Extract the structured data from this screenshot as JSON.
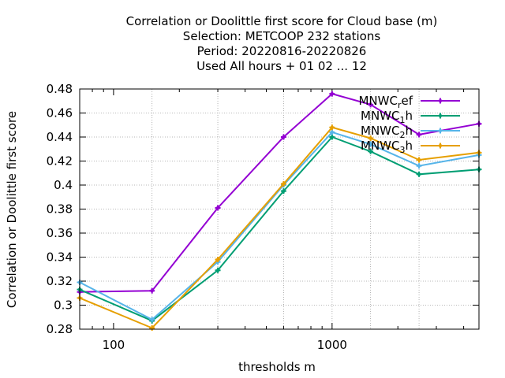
{
  "chart_data": {
    "type": "line",
    "title_lines": [
      "Correlation or Doolittle first score  for Cloud base (m)",
      "Selection: METCOOP    232 stations",
      "Period: 20220816-20220826",
      "Used  All hours + 01 02 ... 12"
    ],
    "xlabel": "thresholds m",
    "ylabel": "Correlation or Doolittle first score",
    "x_scale": "log",
    "xlim": [
      70,
      4700
    ],
    "ylim": [
      0.28,
      0.48
    ],
    "grid": true,
    "legend_position": "top-right",
    "x_tick_labels": [
      {
        "value": 100,
        "label": "100"
      },
      {
        "value": 1000,
        "label": "1000"
      }
    ],
    "y_tick_labels": [
      {
        "value": 0.28,
        "label": "0.28"
      },
      {
        "value": 0.3,
        "label": "0.3"
      },
      {
        "value": 0.32,
        "label": "0.32"
      },
      {
        "value": 0.34,
        "label": "0.34"
      },
      {
        "value": 0.36,
        "label": "0.36"
      },
      {
        "value": 0.38,
        "label": "0.38"
      },
      {
        "value": 0.4,
        "label": "0.4"
      },
      {
        "value": 0.42,
        "label": "0.42"
      },
      {
        "value": 0.44,
        "label": "0.44"
      },
      {
        "value": 0.46,
        "label": "0.46"
      },
      {
        "value": 0.48,
        "label": "0.48"
      }
    ],
    "x": [
      70,
      150,
      300,
      600,
      1000,
      1500,
      2500,
      4700
    ],
    "series": [
      {
        "name_base": "MNWC",
        "name_sub": "r",
        "name_rest": "ef",
        "color": "#9400d3",
        "values": [
          0.311,
          0.312,
          0.381,
          0.44,
          0.476,
          0.467,
          0.442,
          0.451
        ]
      },
      {
        "name_base": "MNWC",
        "name_sub": "1",
        "name_rest": "h",
        "color": "#009e73",
        "values": [
          0.313,
          0.287,
          0.329,
          0.395,
          0.44,
          0.428,
          0.409,
          0.413
        ]
      },
      {
        "name_base": "MNWC",
        "name_sub": "2",
        "name_rest": "h",
        "color": "#56b4e9",
        "values": [
          0.319,
          0.288,
          0.336,
          0.4,
          0.444,
          0.434,
          0.416,
          0.425
        ]
      },
      {
        "name_base": "MNWC",
        "name_sub": "3",
        "name_rest": "h",
        "color": "#e69f00",
        "values": [
          0.306,
          0.281,
          0.338,
          0.401,
          0.448,
          0.439,
          0.421,
          0.427
        ]
      }
    ]
  }
}
